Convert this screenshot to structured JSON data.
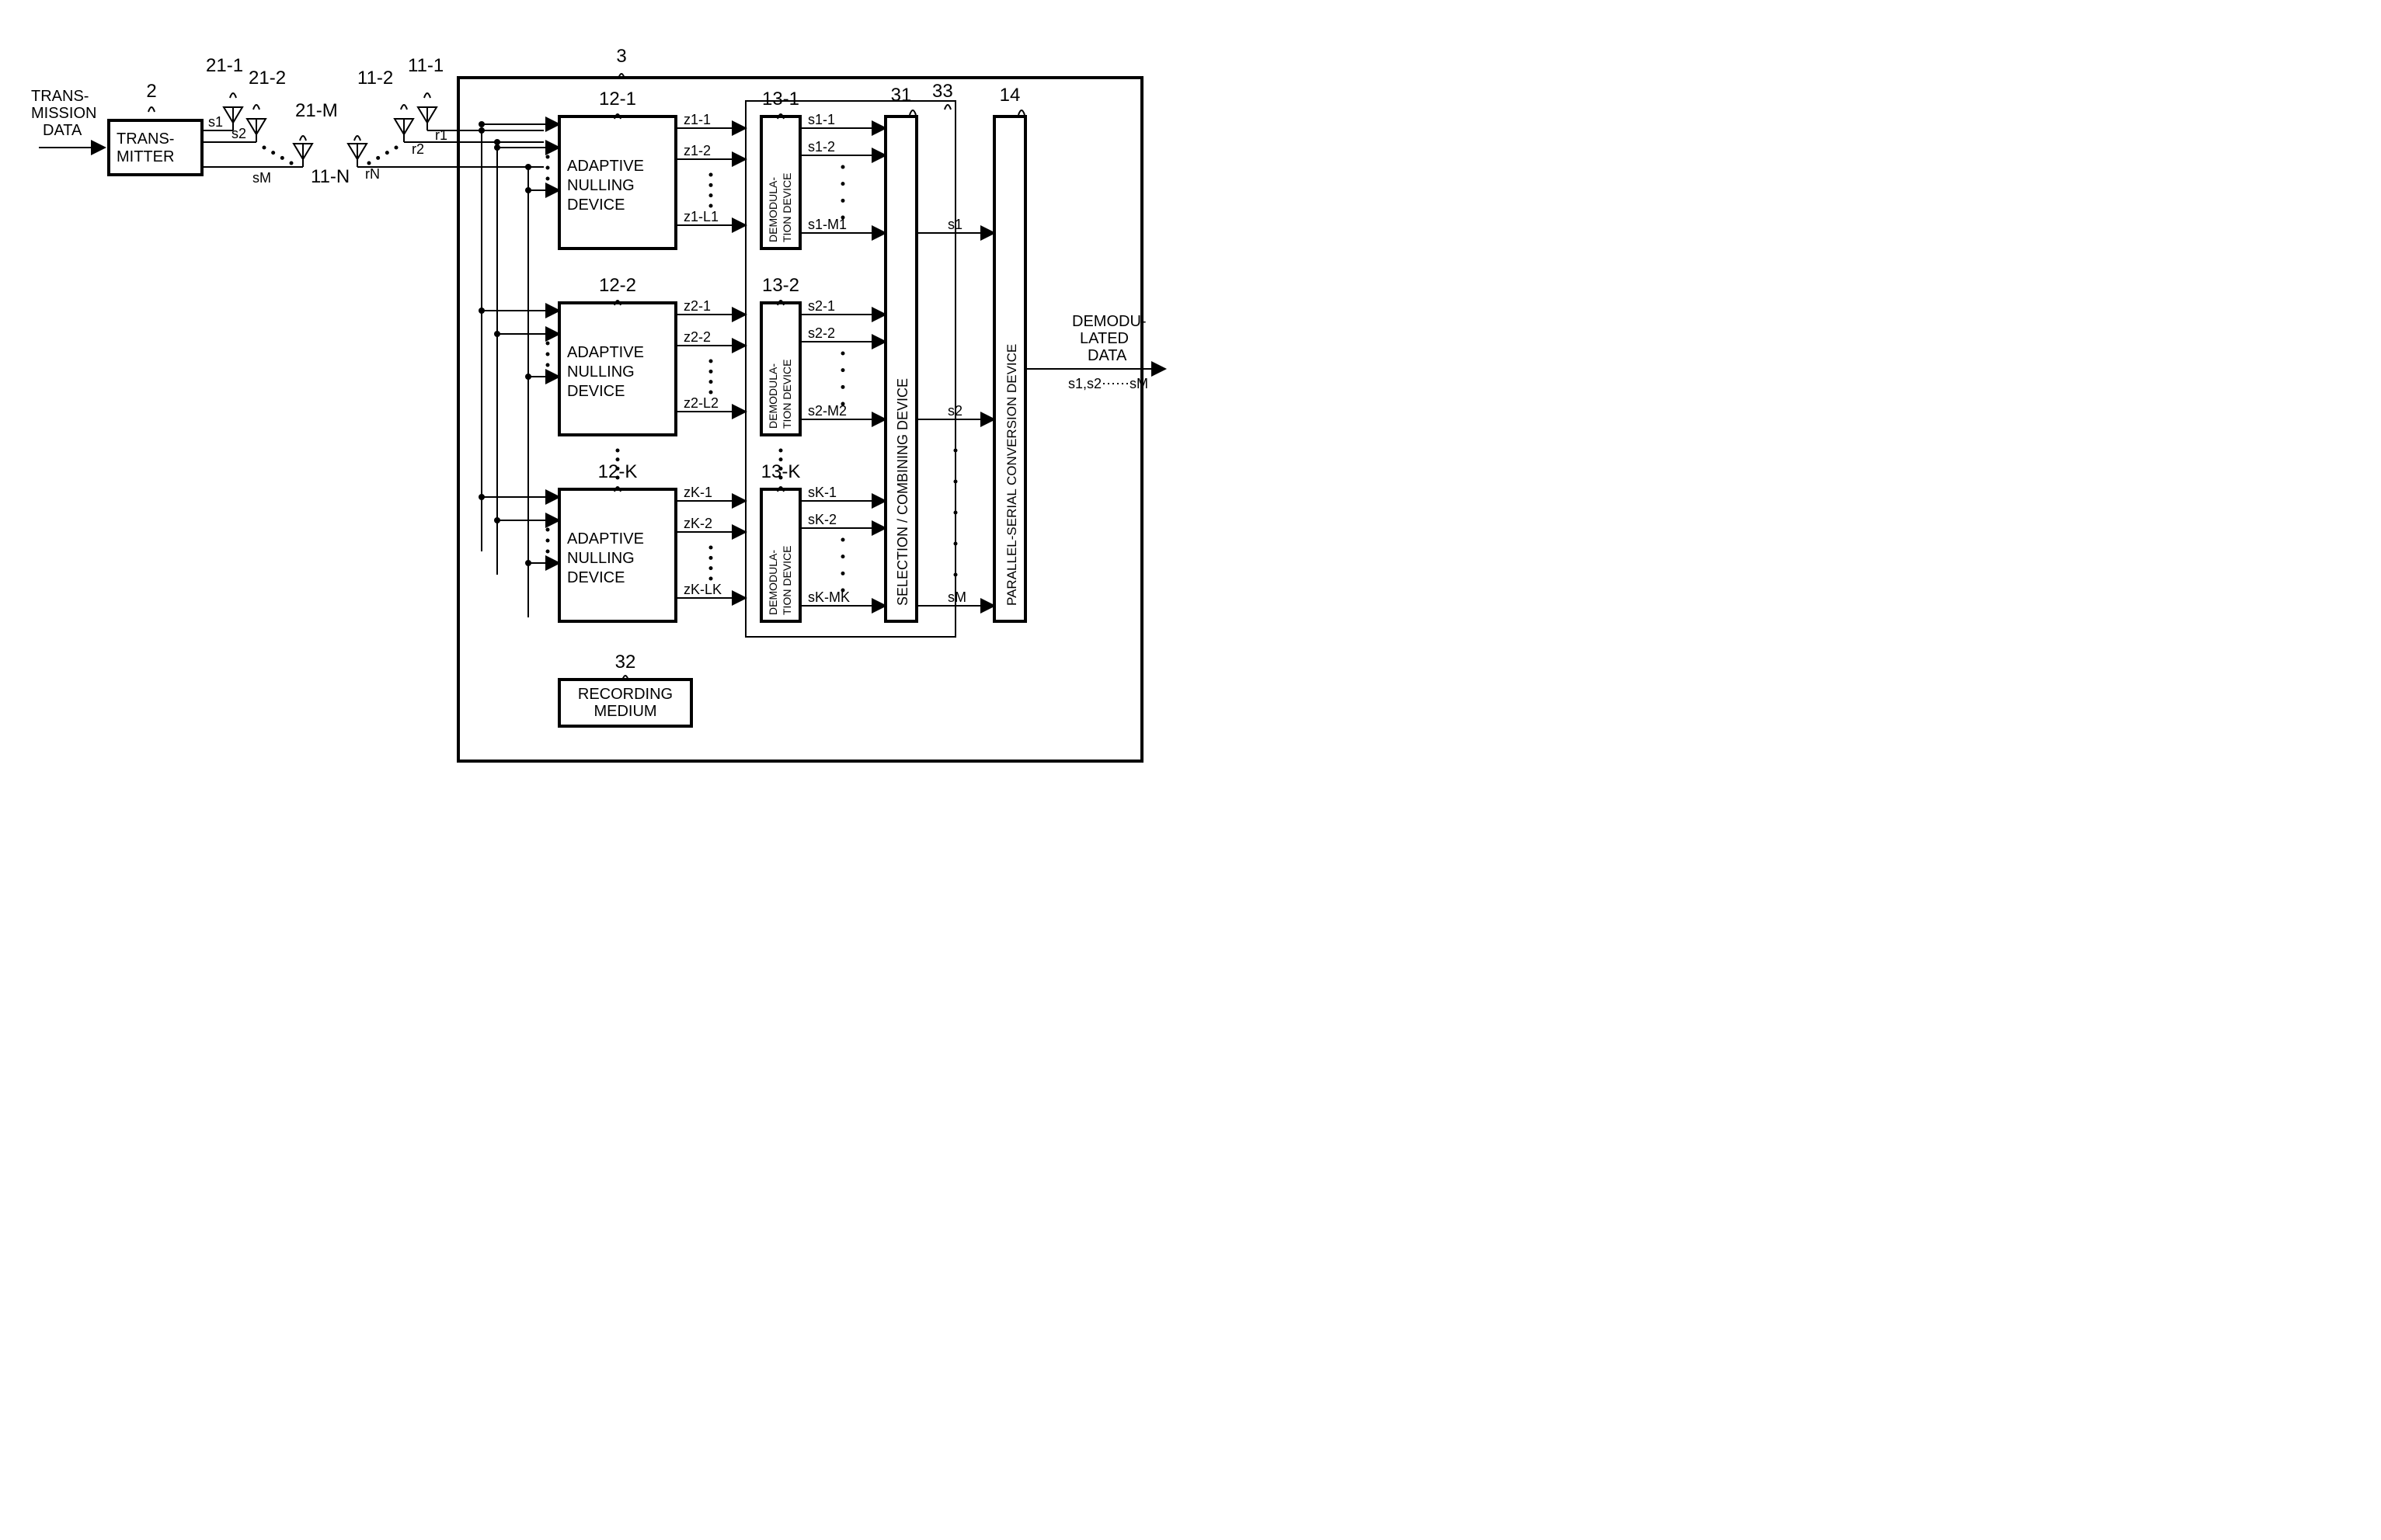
{
  "colors": {
    "stroke": "#000000",
    "bg": "#ffffff",
    "fill": "none"
  },
  "stroke_width": {
    "thin": 2,
    "thick": 4
  },
  "font": {
    "label": 20,
    "small": 18,
    "num": 24
  },
  "labels": {
    "input": {
      "l1": "TRANS-",
      "l2": "MISSION",
      "l3": "DATA"
    },
    "output": {
      "l1": "DEMODU-",
      "l2": "LATED",
      "l3": "DATA",
      "sub": "s1,s2⋯⋯sM"
    },
    "transmitter": {
      "l1": "TRANS-",
      "l2": "MITTER"
    },
    "adaptive": {
      "l1": "ADAPTIVE",
      "l2": "NULLING",
      "l3": "DEVICE"
    },
    "demod": {
      "l1": "DEMODULA-",
      "l2": "TION DEVICE"
    },
    "selcomb": "SELECTION / COMBINING DEVICE",
    "psconv": "PARALLEL-SERIAL CONVERSION DEVICE",
    "recmed": {
      "l1": "RECORDING",
      "l2": "MEDIUM"
    }
  },
  "nums": {
    "transmitter": "2",
    "receiver": "3",
    "tx_ant": [
      "21-1",
      "21-2",
      "21-M"
    ],
    "rx_ant": [
      "11-1",
      "11-2",
      "11-N"
    ],
    "adaptive": [
      "12-1",
      "12-2",
      "12-K"
    ],
    "demod": [
      "13-1",
      "13-2",
      "13-K"
    ],
    "selcomb": "31",
    "recmed": "32",
    "group33": "33",
    "psconv": "14"
  },
  "sigs": {
    "tx": [
      "s1",
      "s2",
      "sM"
    ],
    "rx": [
      "r1",
      "r2",
      "rN"
    ],
    "z1": [
      "z1-1",
      "z1-2",
      "z1-L1"
    ],
    "z2": [
      "z2-1",
      "z2-2",
      "z2-L2"
    ],
    "zK": [
      "zK-1",
      "zK-2",
      "zK-LK"
    ],
    "s1o": [
      "s1-1",
      "s1-2",
      "s1-M1"
    ],
    "s2o": [
      "s2-1",
      "s2-2",
      "s2-M2"
    ],
    "sKo": [
      "sK-1",
      "sK-2",
      "sK-MK"
    ],
    "sout": [
      "s1",
      "s2",
      "sM"
    ]
  }
}
